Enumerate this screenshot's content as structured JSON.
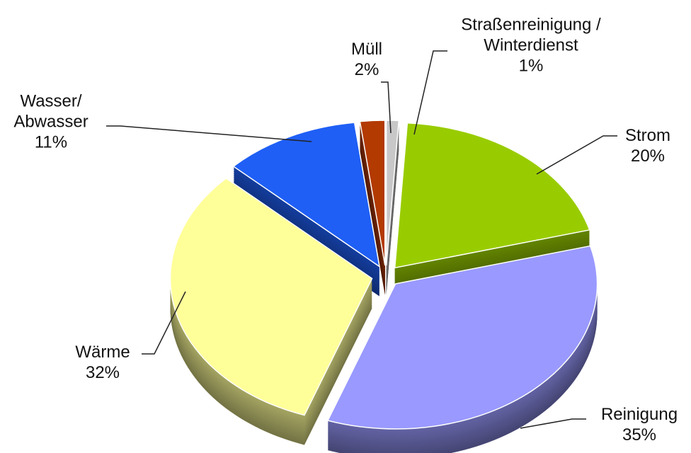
{
  "chart_data": {
    "type": "pie",
    "categories": [
      "Straßenreinigung / Winterdienst",
      "Strom",
      "Reinigung",
      "Wärme",
      "Wasser/ Abwasser",
      "Müll"
    ],
    "values": [
      1,
      20,
      35,
      32,
      11,
      2
    ],
    "value_labels": [
      "1%",
      "20%",
      "35%",
      "32%",
      "11%",
      "2%"
    ],
    "colors": [
      "#c8c8c8",
      "#99cc00",
      "#9999ff",
      "#ffff99",
      "#1f5ff5",
      "#b33a00"
    ]
  }
}
